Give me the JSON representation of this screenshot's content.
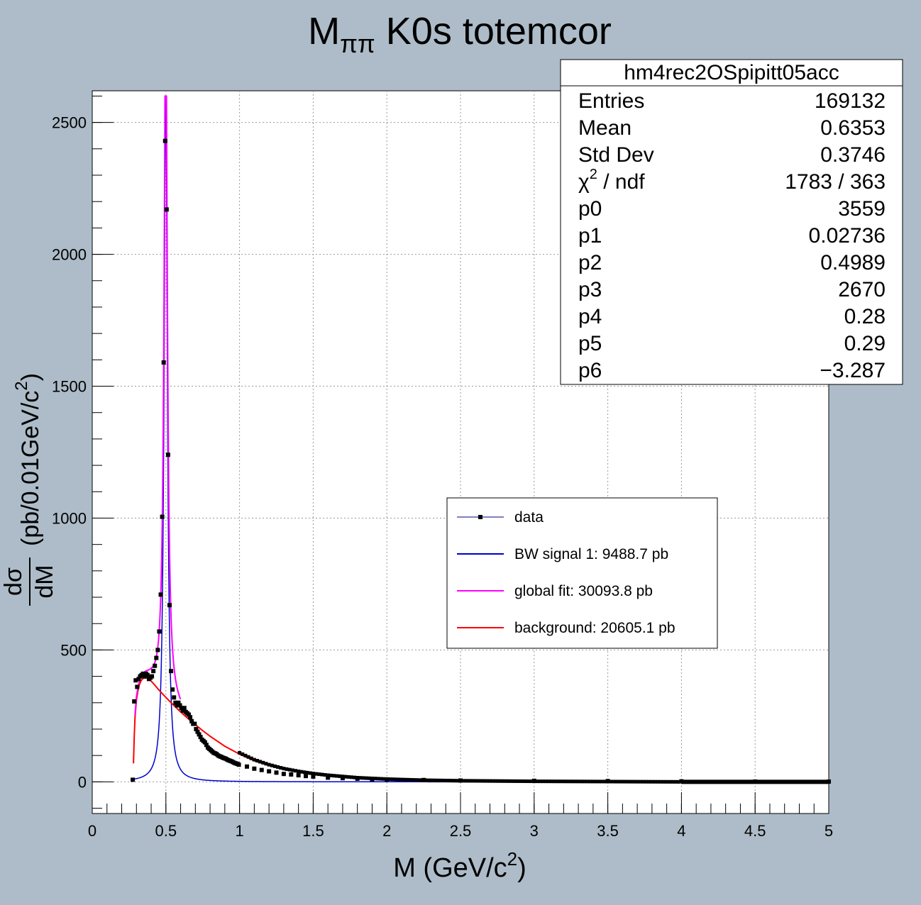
{
  "chart_data": {
    "type": "line",
    "title": {
      "main": "M",
      "sub": "ππ",
      "rest": " K0s totemcor"
    },
    "xlabel": {
      "pre": "M (GeV/c",
      "sup": "2",
      "post": ")"
    },
    "ylabel": {
      "num": "dσ",
      "den": "dM",
      "pre": "(pb/0.01GeV/c",
      "sup": "2",
      "post": ")"
    },
    "xlim": [
      0,
      5
    ],
    "ylim": [
      -120,
      2620
    ],
    "grid": true,
    "x_ticks": [
      {
        "v": 0,
        "label": "0"
      },
      {
        "v": 0.5,
        "label": "0.5"
      },
      {
        "v": 1,
        "label": "1"
      },
      {
        "v": 1.5,
        "label": "1.5"
      },
      {
        "v": 2,
        "label": "2"
      },
      {
        "v": 2.5,
        "label": "2.5"
      },
      {
        "v": 3,
        "label": "3"
      },
      {
        "v": 3.5,
        "label": "3.5"
      },
      {
        "v": 4,
        "label": "4"
      },
      {
        "v": 4.5,
        "label": "4.5"
      },
      {
        "v": 5,
        "label": "5"
      }
    ],
    "y_ticks": [
      {
        "v": 0,
        "label": "0"
      },
      {
        "v": 500,
        "label": "500"
      },
      {
        "v": 1000,
        "label": "1000"
      },
      {
        "v": 1500,
        "label": "1500"
      },
      {
        "v": 2000,
        "label": "2000"
      },
      {
        "v": 2500,
        "label": "2500"
      }
    ],
    "series": [
      {
        "name": "data",
        "kind": "markers",
        "color": "#000000",
        "x": [
          0.275,
          0.285,
          0.295,
          0.305,
          0.315,
          0.325,
          0.335,
          0.345,
          0.355,
          0.365,
          0.375,
          0.385,
          0.395,
          0.405,
          0.415,
          0.425,
          0.435,
          0.445,
          0.455,
          0.465,
          0.475,
          0.485,
          0.495,
          0.505,
          0.515,
          0.525,
          0.535,
          0.545,
          0.555,
          0.565,
          0.575,
          0.585,
          0.595,
          0.605,
          0.615,
          0.625,
          0.635,
          0.645,
          0.655,
          0.665,
          0.675,
          0.685,
          0.695,
          0.705,
          0.715,
          0.725,
          0.735,
          0.745,
          0.755,
          0.765,
          0.775,
          0.785,
          0.795,
          0.805,
          0.815,
          0.825,
          0.835,
          0.845,
          0.855,
          0.865,
          0.875,
          0.885,
          0.895,
          0.905,
          0.915,
          0.925,
          0.935,
          0.945,
          0.955,
          0.965,
          0.975,
          0.985,
          0.995,
          1.05,
          1.1,
          1.15,
          1.2,
          1.25,
          1.3,
          1.35,
          1.4,
          1.45,
          1.5,
          1.6,
          1.7,
          1.8,
          1.9,
          2.0,
          2.25,
          2.5,
          3.0,
          3.5,
          4.0,
          4.5,
          5.0
        ],
        "y": [
          8,
          305,
          385,
          360,
          390,
          400,
          405,
          410,
          400,
          410,
          405,
          390,
          395,
          400,
          420,
          440,
          470,
          500,
          570,
          710,
          1005,
          1590,
          2430,
          2170,
          1240,
          670,
          420,
          350,
          320,
          300,
          290,
          300,
          290,
          280,
          270,
          280,
          265,
          260,
          255,
          245,
          230,
          220,
          220,
          200,
          190,
          180,
          170,
          160,
          155,
          150,
          140,
          130,
          125,
          120,
          115,
          110,
          108,
          105,
          100,
          97,
          95,
          92,
          90,
          88,
          85,
          82,
          80,
          78,
          75,
          72,
          70,
          68,
          65,
          58,
          50,
          45,
          40,
          35,
          30,
          28,
          25,
          22,
          20,
          16,
          14,
          12,
          10,
          9,
          7,
          5,
          4,
          3,
          2,
          1,
          1
        ]
      },
      {
        "name": "BW signal 1: 9488.7 pb",
        "kind": "bw",
        "color": "#0000cc",
        "params": {
          "A": 3559,
          "gamma": 0.02736,
          "m0": 0.4989
        },
        "x_range": [
          0.275,
          5.0
        ]
      },
      {
        "name": "global fit: 30093.8 pb",
        "kind": "sum",
        "color": "#ff00ff",
        "x_range": [
          0.29,
          0.6
        ]
      },
      {
        "name": "background: 20605.1 pb",
        "kind": "bg",
        "color": "#ff0000",
        "x": [
          0.28,
          0.285,
          0.29,
          0.3,
          0.31,
          0.32,
          0.33,
          0.34,
          0.35,
          0.36,
          0.37,
          0.38,
          0.4,
          0.42,
          0.45,
          0.5,
          0.55,
          0.6,
          0.65,
          0.7,
          0.75,
          0.8,
          0.9,
          1.0,
          1.1,
          1.2,
          1.3,
          1.4,
          1.5,
          1.6,
          1.8,
          2.0,
          2.25,
          2.5,
          2.75,
          3.0,
          3.5,
          4.0
        ],
        "y": [
          70,
          170,
          240,
          310,
          345,
          368,
          382,
          390,
          393,
          394,
          393,
          390,
          382,
          370,
          350,
          320,
          292,
          265,
          240,
          217,
          194,
          173,
          135,
          105,
          80,
          62,
          48,
          38,
          30,
          24,
          15,
          10,
          6,
          4,
          3,
          2,
          1,
          0
        ]
      }
    ]
  },
  "stats": {
    "title": "hm4rec2OSpipitt05acc",
    "rows": [
      {
        "label": "Entries",
        "value": "169132"
      },
      {
        "label": "Mean",
        "value": "0.6353"
      },
      {
        "label": "Std Dev",
        "value": "0.3746"
      },
      {
        "label": "χ",
        "label_sup": "2",
        "label_post": " / ndf",
        "value": "1783 / 363"
      },
      {
        "label": "p0",
        "value": "3559"
      },
      {
        "label": "p1",
        "value": "0.02736"
      },
      {
        "label": "p2",
        "value": "0.4989"
      },
      {
        "label": "p3",
        "value": "2670"
      },
      {
        "label": "p4",
        "value": "0.28"
      },
      {
        "label": "p5",
        "value": "0.29"
      },
      {
        "label": "p6",
        "value": "−3.287"
      }
    ]
  },
  "legend": {
    "entries": [
      {
        "label": "data",
        "color": "#000080",
        "marker": true
      },
      {
        "label": "BW signal 1: 9488.7 pb",
        "color": "#0000cc",
        "marker": false
      },
      {
        "label": "global fit: 30093.8 pb",
        "color": "#ff00ff",
        "marker": false
      },
      {
        "label": "background: 20605.1 pb",
        "color": "#ff0000",
        "marker": false
      }
    ]
  }
}
